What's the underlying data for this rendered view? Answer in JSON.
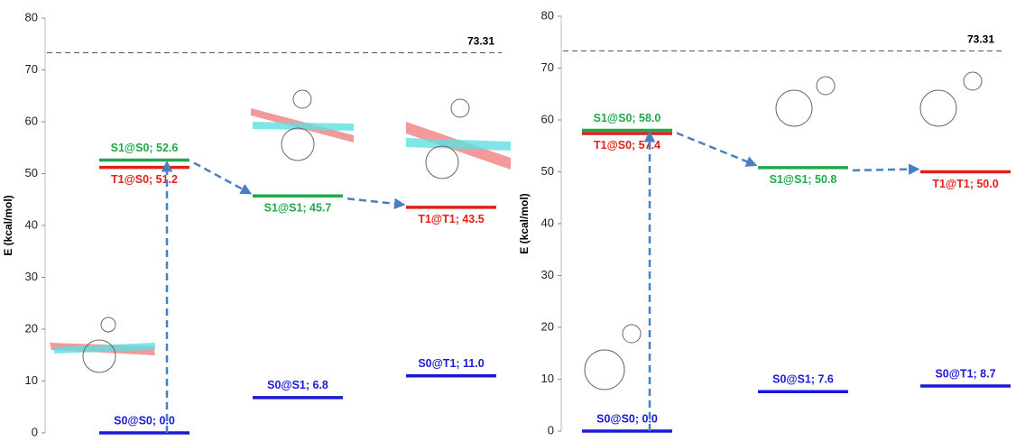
{
  "chart_data": [
    {
      "type": "energy-level",
      "ylabel": "E (kcal/mol)",
      "ylim": [
        0,
        80
      ],
      "yticks": [
        0,
        10,
        20,
        30,
        40,
        50,
        60,
        70,
        80
      ],
      "ref_line": 73.31,
      "columns": [
        {
          "levels": [
            {
              "value": 0.0,
              "label": "S0@S0; 0.0",
              "color": "#1a1ad6"
            },
            {
              "value": 51.2,
              "label": "T1@S0; 51.2",
              "color": "#e0201b"
            },
            {
              "value": 52.6,
              "label": "S1@S0; 52.6",
              "color": "#22a84a"
            }
          ]
        },
        {
          "levels": [
            {
              "value": 6.8,
              "label": "S0@S1; 6.8",
              "color": "#1a1ad6"
            },
            {
              "value": 45.7,
              "label": "S1@S1; 45.7",
              "color": "#22a84a"
            }
          ]
        },
        {
          "levels": [
            {
              "value": 11.0,
              "label": "S0@T1; 11.0",
              "color": "#1a1ad6"
            },
            {
              "value": 43.5,
              "label": "T1@T1; 43.5",
              "color": "#e0201b"
            }
          ]
        }
      ]
    },
    {
      "type": "energy-level",
      "ylabel": "E (kcal/mol)",
      "ylim": [
        0,
        80
      ],
      "yticks": [
        0,
        10,
        20,
        30,
        40,
        50,
        60,
        70,
        80
      ],
      "ref_line": 73.31,
      "columns": [
        {
          "levels": [
            {
              "value": 0.0,
              "label": "S0@S0; 0.0",
              "color": "#1a1ad6"
            },
            {
              "value": 57.4,
              "label": "T1@S0; 57.4",
              "color": "#e0201b"
            },
            {
              "value": 58.0,
              "label": "S1@S0; 58.0",
              "color": "#22a84a"
            }
          ]
        },
        {
          "levels": [
            {
              "value": 7.6,
              "label": "S0@S1; 7.6",
              "color": "#1a1ad6"
            },
            {
              "value": 50.8,
              "label": "S1@S1; 50.8",
              "color": "#22a84a"
            }
          ]
        },
        {
          "levels": [
            {
              "value": 8.7,
              "label": "S0@T1; 8.7",
              "color": "#1a1ad6"
            },
            {
              "value": 50.0,
              "label": "T1@T1; 50.0",
              "color": "#e0201b"
            }
          ]
        }
      ]
    }
  ]
}
